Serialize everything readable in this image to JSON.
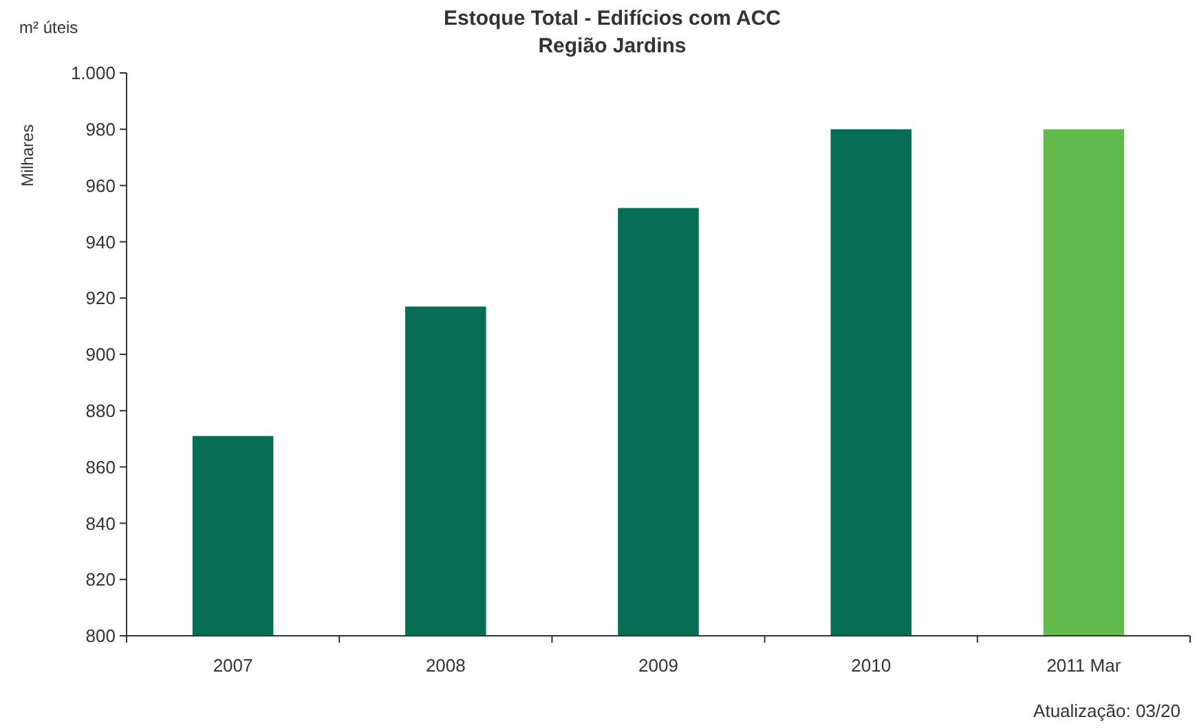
{
  "chart_data": {
    "type": "bar",
    "title": "Estoque Total - Edifícios com ACC",
    "subtitle": "Região  Jardins",
    "ylabel": "Milhares",
    "annotations": [
      "m² úteis",
      "Atualização: 03/20"
    ],
    "categories": [
      "2007",
      "2008",
      "2009",
      "2010",
      "2011 Mar"
    ],
    "values": [
      871,
      917,
      952,
      980,
      980
    ],
    "colors": [
      "#076e55",
      "#076e55",
      "#076e55",
      "#076e55",
      "#62bb4b"
    ],
    "ylim": [
      800,
      1000
    ],
    "yticks": [
      800,
      820,
      840,
      860,
      880,
      900,
      920,
      940,
      960,
      980,
      {
        "value": 1000,
        "label": "1.000"
      }
    ],
    "grid": false
  }
}
